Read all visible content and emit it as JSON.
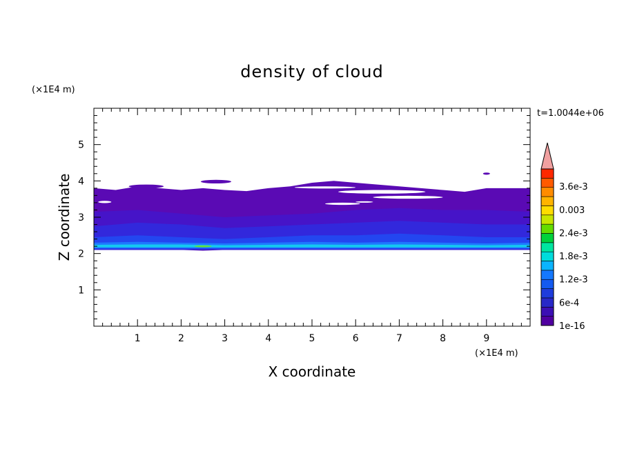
{
  "chart_data": {
    "type": "heatmap",
    "title": "density of cloud",
    "xlabel": "X coordinate",
    "ylabel": "Z coordinate",
    "x_unit": "(×1E4 m)",
    "y_unit": "(×1E4 m)",
    "time_label": "t=1.0044e+06",
    "xlim": [
      0,
      10
    ],
    "ylim": [
      0,
      6
    ],
    "x_ticks": [
      "1",
      "2",
      "3",
      "4",
      "5",
      "6",
      "7",
      "8",
      "9"
    ],
    "y_ticks": [
      "1",
      "2",
      "3",
      "4",
      "5"
    ],
    "colorbar": {
      "labels": [
        "1e-16",
        "6e-4",
        "1.2e-3",
        "1.8e-3",
        "2.4e-3",
        "0.003",
        "3.6e-3"
      ],
      "colors": [
        "#5000a0",
        "#3c0fb4",
        "#2828c8",
        "#1e3cdc",
        "#145af0",
        "#1478ff",
        "#0ab4ff",
        "#00dcdc",
        "#00e6a0",
        "#00d23c",
        "#64dc00",
        "#c8e600",
        "#ffdc00",
        "#ffb400",
        "#ff8c00",
        "#ff5a00",
        "#ff2800"
      ],
      "extend_color": "#f0a0a0"
    },
    "bands": [
      {
        "level": 0,
        "color": "#5a0ab4",
        "x": [
          0,
          0.5,
          1,
          1.5,
          2,
          2.5,
          3,
          3.5,
          4,
          4.5,
          5,
          5.5,
          6,
          6.5,
          7,
          7.5,
          8,
          8.5,
          9,
          9.5,
          10
        ],
        "bottom": [
          2.1,
          2.1,
          2.1,
          2.1,
          2.1,
          2.08,
          2.1,
          2.1,
          2.1,
          2.1,
          2.1,
          2.1,
          2.1,
          2.1,
          2.1,
          2.1,
          2.1,
          2.1,
          2.1,
          2.1,
          2.1
        ],
        "top": [
          3.8,
          3.75,
          3.85,
          3.8,
          3.75,
          3.8,
          3.75,
          3.72,
          3.8,
          3.85,
          3.95,
          4.0,
          3.95,
          3.9,
          3.85,
          3.8,
          3.75,
          3.7,
          3.8,
          3.8,
          3.8
        ]
      },
      {
        "level": 1,
        "color": "#4614c8",
        "x": [
          0,
          1,
          2,
          3,
          4,
          5,
          6,
          7,
          8,
          9,
          10
        ],
        "bottom": [
          2.1,
          2.1,
          2.1,
          2.1,
          2.1,
          2.1,
          2.1,
          2.1,
          2.1,
          2.1,
          2.1
        ],
        "top": [
          3.15,
          3.2,
          3.1,
          3.0,
          3.05,
          3.1,
          3.2,
          3.25,
          3.2,
          3.2,
          3.15
        ]
      },
      {
        "level": 2,
        "color": "#3228dc",
        "x": [
          0,
          1,
          2,
          3,
          4,
          5,
          6,
          7,
          8,
          9,
          10
        ],
        "bottom": [
          2.1,
          2.1,
          2.1,
          2.1,
          2.1,
          2.1,
          2.1,
          2.1,
          2.1,
          2.1,
          2.1
        ],
        "top": [
          2.75,
          2.85,
          2.8,
          2.7,
          2.75,
          2.8,
          2.85,
          2.9,
          2.85,
          2.8,
          2.8
        ]
      },
      {
        "level": 3,
        "color": "#2346f0",
        "x": [
          0,
          1,
          2,
          3,
          4,
          5,
          6,
          7,
          8,
          9,
          10
        ],
        "bottom": [
          2.12,
          2.12,
          2.12,
          2.12,
          2.12,
          2.12,
          2.12,
          2.12,
          2.12,
          2.12,
          2.12
        ],
        "top": [
          2.45,
          2.5,
          2.45,
          2.4,
          2.45,
          2.5,
          2.5,
          2.55,
          2.5,
          2.45,
          2.45
        ]
      },
      {
        "level": 4,
        "color": "#1e78ff",
        "x": [
          0,
          1,
          2,
          3,
          4,
          5,
          6,
          7,
          8,
          9,
          10
        ],
        "bottom": [
          2.15,
          2.15,
          2.15,
          2.15,
          2.15,
          2.15,
          2.15,
          2.15,
          2.15,
          2.15,
          2.15
        ],
        "top": [
          2.3,
          2.32,
          2.3,
          2.28,
          2.3,
          2.32,
          2.3,
          2.32,
          2.3,
          2.28,
          2.3
        ]
      },
      {
        "level": 5,
        "color": "#14c8f0",
        "x": [
          0,
          1,
          2,
          3,
          4,
          5,
          6,
          7,
          8,
          9,
          10
        ],
        "bottom": [
          2.17,
          2.17,
          2.17,
          2.17,
          2.17,
          2.17,
          2.17,
          2.17,
          2.17,
          2.17,
          2.17
        ],
        "top": [
          2.24,
          2.25,
          2.25,
          2.23,
          2.24,
          2.25,
          2.24,
          2.25,
          2.24,
          2.23,
          2.24
        ]
      }
    ],
    "islands": [
      {
        "x": 1.2,
        "z": 3.85,
        "rx": 0.4,
        "rz": 0.05,
        "color": "#5a0ab4"
      },
      {
        "x": 2.8,
        "z": 3.98,
        "rx": 0.35,
        "rz": 0.05,
        "color": "#5a0ab4"
      },
      {
        "x": 9.0,
        "z": 4.2,
        "rx": 0.08,
        "rz": 0.03,
        "color": "#5a0ab4"
      },
      {
        "x": 2.5,
        "z": 2.2,
        "rx": 0.2,
        "rz": 0.025,
        "color": "#64dc3c"
      }
    ],
    "gaps": [
      {
        "x": 0.25,
        "z": 3.42,
        "rx": 0.15,
        "rz": 0.03
      },
      {
        "x": 5.3,
        "z": 3.82,
        "rx": 0.7,
        "rz": 0.03
      },
      {
        "x": 6.6,
        "z": 3.7,
        "rx": 1.0,
        "rz": 0.05
      },
      {
        "x": 7.2,
        "z": 3.55,
        "rx": 0.8,
        "rz": 0.04
      },
      {
        "x": 5.7,
        "z": 3.37,
        "rx": 0.4,
        "rz": 0.03
      },
      {
        "x": 6.2,
        "z": 3.42,
        "rx": 0.2,
        "rz": 0.02
      }
    ]
  }
}
